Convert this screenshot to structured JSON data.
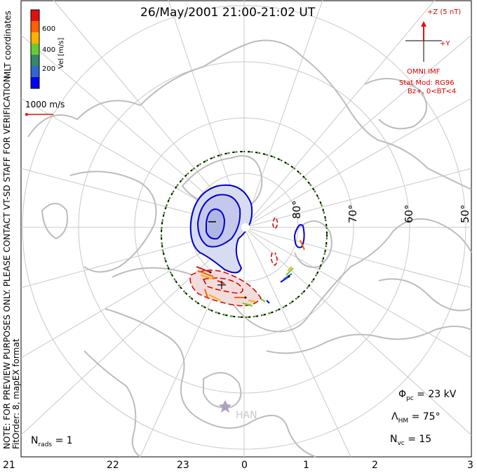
{
  "title": "26/May/2001 21:00-21:02 UT",
  "side_note": {
    "line1": "NOTE: FOR PREVIEW PURPOSES ONLY. PLEASE CONTACT VT-SD STAFF FOR VERIFICATION.",
    "line2": "FitOrder: 8, mapEX format"
  },
  "color_scale": {
    "label": "Vel [m/s]",
    "ticks": [
      "600",
      "400",
      "200"
    ],
    "colors": [
      "#e01010",
      "#ff6000",
      "#ffb000",
      "#66cc33",
      "#338866",
      "#3366cc",
      "#0000ff"
    ]
  },
  "coordinates": "MLT coordinates",
  "reference_vector": "1000 m/s",
  "imf": {
    "z_label": "+Z (5 nT)",
    "y_label": "+Y",
    "source": "OMNI IMF",
    "stat_mod": "Stat Mod: RG96",
    "condition": "Bz+, 0<BT<4"
  },
  "latitude_labels": [
    "80°",
    "70°",
    "60°",
    "50°"
  ],
  "mlt_labels": [
    "21",
    "22",
    "23",
    "0",
    "1",
    "2",
    "3"
  ],
  "station": "HAN",
  "stats": {
    "phi_pc_value": "= 23 kV",
    "lambda_hm_value": "= 75°",
    "n_vc_value": "= 15",
    "n_rads_value": "= 1"
  },
  "colors": {
    "negative_contour": "#0000cc",
    "positive_contour": "#cc0000",
    "coastline": "#c0c0c0",
    "grid": "#c8c8c8"
  }
}
